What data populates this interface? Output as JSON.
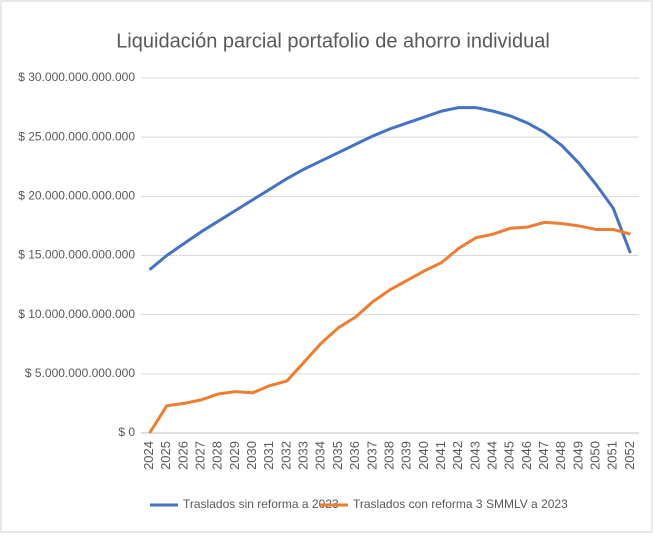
{
  "chart_data": {
    "type": "line",
    "title": "Liquidación parcial portafolio de ahorro individual",
    "categories": [
      "2024",
      "2025",
      "2026",
      "2027",
      "2028",
      "2029",
      "2030",
      "2031",
      "2032",
      "2033",
      "2034",
      "2035",
      "2036",
      "2037",
      "2038",
      "2039",
      "2040",
      "2041",
      "2042",
      "2043",
      "2044",
      "2045",
      "2046",
      "2047",
      "2048",
      "2049",
      "2050",
      "2051",
      "2052"
    ],
    "series": [
      {
        "name": "Traslados sin reforma a 2023",
        "color": "#4472c4",
        "values": [
          13800000000000,
          15000000000000,
          16000000000000,
          17000000000000,
          17900000000000,
          18800000000000,
          19700000000000,
          20600000000000,
          21500000000000,
          22300000000000,
          23000000000000,
          23700000000000,
          24400000000000,
          25100000000000,
          25700000000000,
          26200000000000,
          26700000000000,
          27200000000000,
          27500000000000,
          27500000000000,
          27200000000000,
          26800000000000,
          26200000000000,
          25400000000000,
          24300000000000,
          22800000000000,
          21000000000000,
          19000000000000,
          15200000000000
        ]
      },
      {
        "name": "Traslados con reforma 3 SMMLV a 2023",
        "color": "#ed7d31",
        "values": [
          0,
          2300000000000,
          2500000000000,
          2800000000000,
          3300000000000,
          3500000000000,
          3400000000000,
          4000000000000,
          4400000000000,
          6000000000000,
          7600000000000,
          8900000000000,
          9800000000000,
          11100000000000,
          12100000000000,
          12900000000000,
          13700000000000,
          14400000000000,
          15600000000000,
          16500000000000,
          16800000000000,
          17300000000000,
          17400000000000,
          17800000000000,
          17700000000000,
          17500000000000,
          17200000000000,
          17200000000000,
          16800000000000
        ]
      }
    ],
    "ylim": [
      0,
      30000000000000
    ],
    "yticks": [
      {
        "value": 0,
        "label": "$ 0"
      },
      {
        "value": 5000000000000,
        "label": "$ 5.000.000.000.000"
      },
      {
        "value": 10000000000000,
        "label": "$ 10.000.000.000.000"
      },
      {
        "value": 15000000000000,
        "label": "$ 15.000.000.000.000"
      },
      {
        "value": 20000000000000,
        "label": "$ 20.000.000.000.000"
      },
      {
        "value": 25000000000000,
        "label": "$ 25.000.000.000.000"
      },
      {
        "value": 30000000000000,
        "label": "$ 30.000.000.000.000"
      }
    ],
    "grid": true,
    "legend": "bottom"
  }
}
